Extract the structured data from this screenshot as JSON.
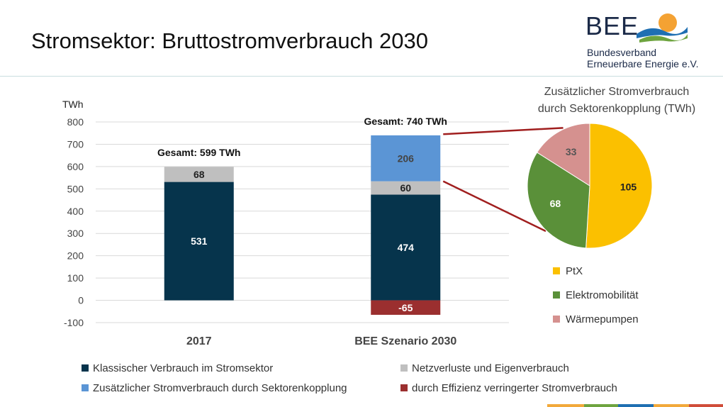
{
  "slide": {
    "title": "Stromsektor: Bruttostromverbrauch 2030"
  },
  "logo": {
    "mark": "BEE",
    "line1": "Bundesverband",
    "line2": "Erneuerbare Energie e.V."
  },
  "colors": {
    "klassisch": "#06344c",
    "netzverluste": "#bfbfbf",
    "sektorkopplung": "#5b95d5",
    "effizienz": "#9b2f2f",
    "ptx": "#fbc000",
    "elektromobilitaet": "#5a9039",
    "waermepumpen": "#d5918f",
    "connector": "#a01e1e",
    "strip": [
      "#f2a93b",
      "#6ea43f",
      "#1f6fb2",
      "#d04d3a"
    ]
  },
  "chart_data": [
    {
      "type": "bar",
      "stacked": true,
      "categories": [
        "2017",
        "BEE Szenario 2030"
      ],
      "ylabel": "TWh",
      "ylim": [
        -100,
        800
      ],
      "yticks": [
        800,
        700,
        600,
        500,
        400,
        300,
        200,
        100,
        0,
        -100
      ],
      "series": [
        {
          "name": "Klassischer Verbrauch im Stromsektor",
          "values": [
            531,
            474
          ]
        },
        {
          "name": "Netzverluste und Eigenverbrauch",
          "values": [
            68,
            60
          ]
        },
        {
          "name": "Zusätzlicher Stromverbrauch durch Sektorenkopplung",
          "values": [
            0,
            206
          ]
        },
        {
          "name": "durch Effizienz verringerter Stromverbrauch",
          "values": [
            0,
            -65
          ]
        }
      ],
      "data_labels": [
        [
          "531",
          "474"
        ],
        [
          "68",
          "60"
        ],
        [
          "",
          "206"
        ],
        [
          "",
          "-65"
        ]
      ],
      "totals": [
        "Gesamt: 599 TWh",
        "Gesamt: 740 TWh"
      ],
      "grid": true
    },
    {
      "type": "pie",
      "title": "Zusätzlicher Stromverbrauch durch Sektorenkopplung (TWh)",
      "title_lines": [
        "Zusätzlicher Stromverbrauch",
        "durch Sektorenkopplung (TWh)"
      ],
      "slices": [
        {
          "name": "PtX",
          "value": 105
        },
        {
          "name": "Elektromobilität",
          "value": 68
        },
        {
          "name": "Wärmepumpen",
          "value": 33
        }
      ],
      "legend": "bottom"
    }
  ]
}
